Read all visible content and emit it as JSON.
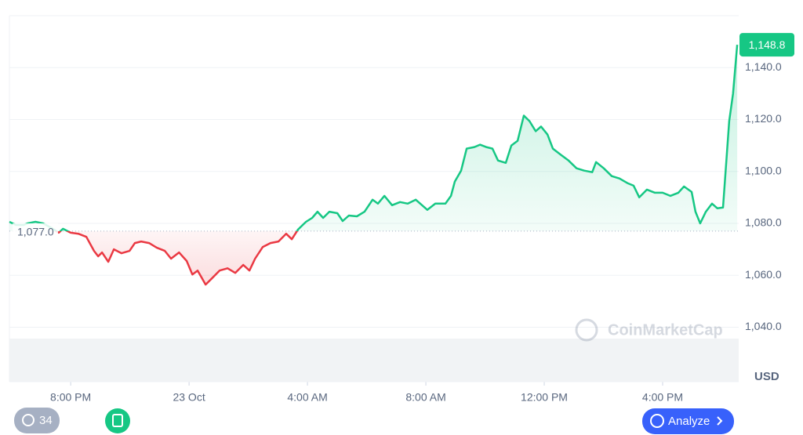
{
  "chart_data": {
    "type": "line",
    "x": [
      17.93,
      18.15,
      18.41,
      18.54,
      18.81,
      19.07,
      19.34,
      19.6,
      19.74,
      20.0,
      20.26,
      20.53,
      20.79,
      20.93,
      21.06,
      21.27,
      21.46,
      21.72,
      21.99,
      22.17,
      22.38,
      22.65,
      22.91,
      23.18,
      23.39,
      23.66,
      23.92,
      24.11,
      24.29,
      24.56,
      24.77,
      25.03,
      25.3,
      25.56,
      25.83,
      26.04,
      26.23,
      26.49,
      26.75,
      27.02,
      27.28,
      27.47,
      27.68,
      27.95,
      28.16,
      28.34,
      28.53,
      28.74,
      29.01,
      29.19,
      29.4,
      29.67,
      29.93,
      30.2,
      30.38,
      30.6,
      30.86,
      31.13,
      31.39,
      31.66,
      32.05,
      32.32,
      32.66,
      32.85,
      32.98,
      33.19,
      33.38,
      33.64,
      33.83,
      34.04,
      34.25,
      34.44,
      34.7,
      34.89,
      35.1,
      35.31,
      35.5,
      35.71,
      35.89,
      36.11,
      36.29,
      36.56,
      36.82,
      37.09,
      37.35,
      37.62,
      37.75,
      38.01,
      38.28,
      38.54,
      38.81,
      39.02,
      39.21,
      39.47,
      39.74,
      40.0,
      40.26,
      40.53,
      40.72,
      40.98,
      41.11,
      41.27,
      41.46,
      41.67,
      41.85,
      42.04,
      42.25,
      42.38,
      42.52
    ],
    "values": [
      1080.6,
      1079.4,
      1079.4,
      1080,
      1080.6,
      1080,
      1078.3,
      1076.4,
      1077.9,
      1076.4,
      1076,
      1074.8,
      1069.4,
      1067.3,
      1068.8,
      1065.2,
      1070,
      1068.5,
      1069.4,
      1072.4,
      1073,
      1072.4,
      1070.6,
      1069.4,
      1066.4,
      1068.8,
      1065.5,
      1060.3,
      1061.8,
      1056.4,
      1058.8,
      1061.8,
      1062.7,
      1060.9,
      1064,
      1061.8,
      1066.4,
      1070.9,
      1072.4,
      1073,
      1076,
      1073.9,
      1077.6,
      1080.6,
      1082.1,
      1084.5,
      1082.1,
      1084.5,
      1083.9,
      1080.9,
      1083,
      1082.7,
      1084.5,
      1089.1,
      1087.6,
      1090.6,
      1087,
      1088.2,
      1087.6,
      1089.1,
      1085.2,
      1087.6,
      1087.6,
      1090.6,
      1096.1,
      1100.3,
      1108.8,
      1109.4,
      1110.3,
      1109.4,
      1108.8,
      1104.2,
      1103.3,
      1110,
      1111.8,
      1121.5,
      1119.4,
      1115.5,
      1117.3,
      1114.2,
      1108.8,
      1106.4,
      1104.2,
      1101.2,
      1100.3,
      1099.7,
      1103.6,
      1101.2,
      1098.2,
      1097.3,
      1095.5,
      1094.5,
      1090,
      1093,
      1091.8,
      1091.8,
      1090.6,
      1091.8,
      1094.2,
      1092.1,
      1084.5,
      1080,
      1084.5,
      1087.6,
      1085.8,
      1086.1,
      1119.4,
      1130,
      1148.8
    ],
    "color": "#16c784",
    "below_color": "#ea3943",
    "baseline": {
      "value": 1077,
      "label": "1,077.0"
    },
    "last_value_label": "1,148.8",
    "xlim": [
      17.93,
      42.57
    ],
    "xticks": [
      {
        "value": 20,
        "label": "8:00 PM"
      },
      {
        "value": 24,
        "label": "23 Oct"
      },
      {
        "value": 28,
        "label": "4:00 AM"
      },
      {
        "value": 32,
        "label": "8:00 AM"
      },
      {
        "value": 36,
        "label": "12:00 PM"
      },
      {
        "value": 40,
        "label": "4:00 PM"
      }
    ],
    "ylim": [
      1019,
      1160
    ],
    "yticks": [
      {
        "value": 1040,
        "label": "1,040.0"
      },
      {
        "value": 1060,
        "label": "1,060.0"
      },
      {
        "value": 1080,
        "label": "1,080.0"
      },
      {
        "value": 1100,
        "label": "1,100.0"
      },
      {
        "value": 1120,
        "label": "1,120.0"
      },
      {
        "value": 1140,
        "label": "1,140.0"
      }
    ],
    "grid": true,
    "y_axis_label": "USD",
    "watermark": "CoinMarketCap"
  },
  "controls": {
    "history_count": "34",
    "analyze": "Analyze"
  }
}
